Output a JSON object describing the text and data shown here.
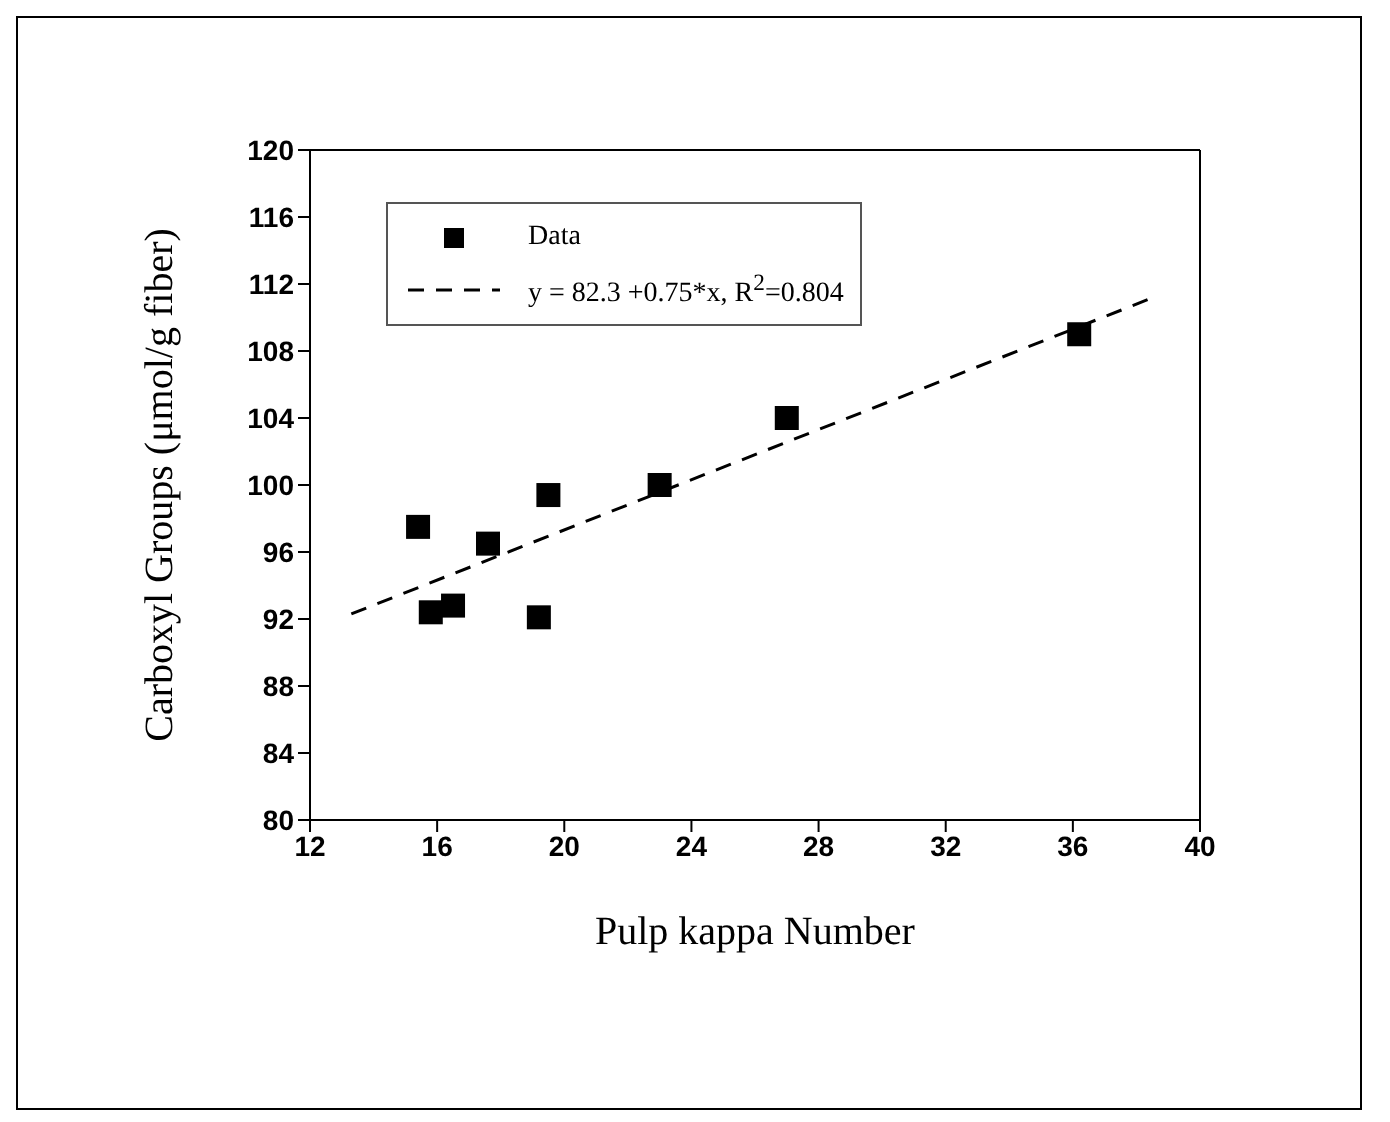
{
  "chart_data": {
    "type": "scatter",
    "xlabel": "Pulp kappa Number",
    "ylabel": "Carboxyl Groups (μmol/g fiber)",
    "xlim": [
      12,
      40
    ],
    "xticks": [
      12,
      16,
      20,
      24,
      28,
      32,
      36,
      40
    ],
    "ylim": [
      80,
      120
    ],
    "yticks": [
      80,
      84,
      88,
      92,
      96,
      100,
      104,
      108,
      112,
      116,
      120
    ],
    "legend": "top left",
    "series": [
      {
        "name": "Data",
        "color": "#000000",
        "marker": "square",
        "x": [
          15.4,
          15.8,
          16.5,
          17.6,
          19.5,
          19.2,
          23.0,
          27.0,
          36.2
        ],
        "values": [
          97.5,
          92.4,
          92.8,
          96.5,
          99.4,
          92.1,
          100.0,
          104.0,
          109.0
        ]
      },
      {
        "name": "y = 82.3 +0.75*x, R$^{2}$=0.804",
        "color": "#000000",
        "type": "line",
        "marker": "none",
        "line_style": "dashed",
        "x": [
          13.3,
          38.4
        ],
        "values": [
          92.3,
          111.1
        ]
      }
    ]
  }
}
